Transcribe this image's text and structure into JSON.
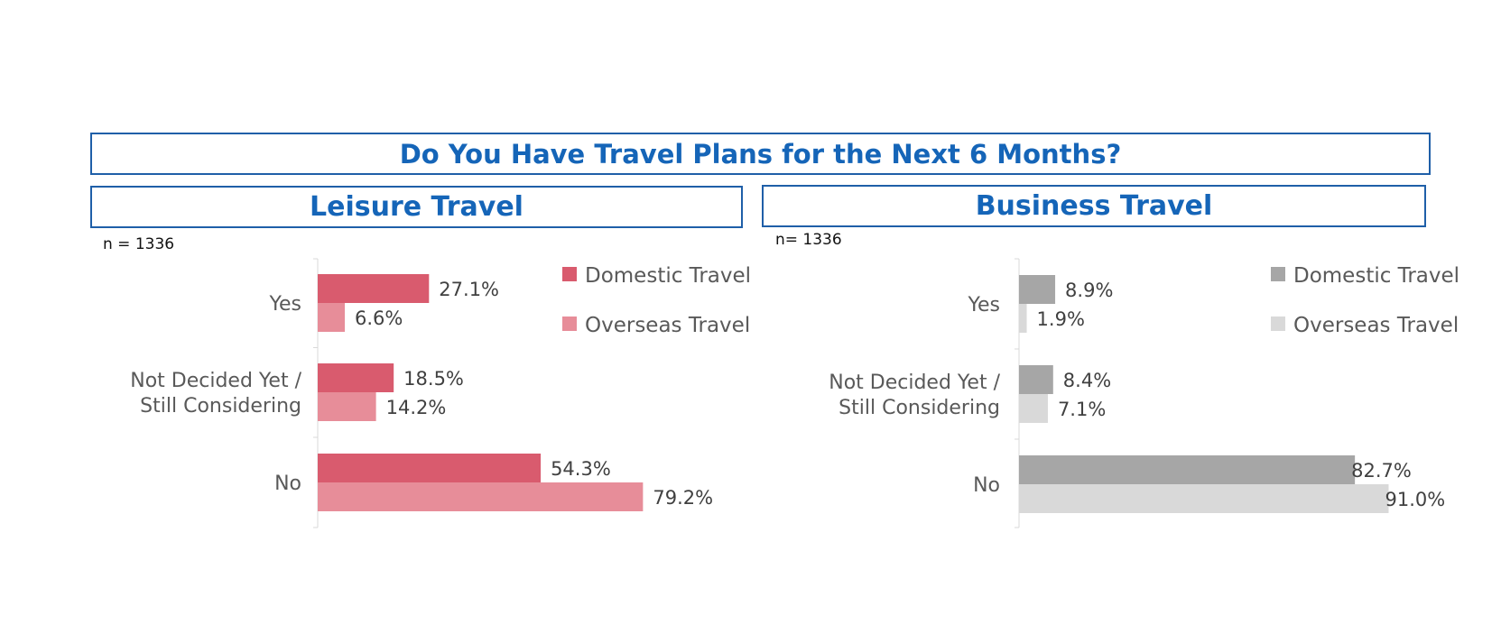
{
  "title": "Do You Have Travel Plans for the Next 6 Months?",
  "colors": {
    "border": "#1f5fa8",
    "title_text": "#1565b8",
    "leisure_domestic": "#d95b6e",
    "leisure_overseas": "#e78d99",
    "business_domestic": "#a6a6a6",
    "business_overseas": "#d9d9d9"
  },
  "chart_data": [
    {
      "type": "bar",
      "orientation": "horizontal",
      "title": "Leisure Travel",
      "sample": "n = 1336",
      "categories": [
        [
          "Yes"
        ],
        [
          "Not Decided Yet /",
          "Still Considering"
        ],
        [
          "No"
        ]
      ],
      "series": [
        {
          "name": "Domestic Travel",
          "values": [
            27.1,
            18.5,
            54.3
          ],
          "labels": [
            "27.1%",
            "18.5%",
            "54.3%"
          ],
          "color": "#d95b6e"
        },
        {
          "name": "Overseas Travel",
          "values": [
            6.6,
            14.2,
            79.2
          ],
          "labels": [
            "6.6%",
            "14.2%",
            "79.2%"
          ],
          "color": "#e78d99"
        }
      ],
      "xlim": [
        0,
        100
      ],
      "legend": "top-right",
      "grid": false
    },
    {
      "type": "bar",
      "orientation": "horizontal",
      "title": "Business Travel",
      "sample": "n= 1336",
      "categories": [
        [
          "Yes"
        ],
        [
          "Not Decided Yet /",
          "Still Considering"
        ],
        [
          "No"
        ]
      ],
      "series": [
        {
          "name": "Domestic Travel",
          "values": [
            8.9,
            8.4,
            82.7
          ],
          "labels": [
            "8.9%",
            "8.4%",
            "82.7%"
          ],
          "color": "#a6a6a6"
        },
        {
          "name": "Overseas Travel",
          "values": [
            1.9,
            7.1,
            91.0
          ],
          "labels": [
            "1.9%",
            "7.1%",
            "91.0%"
          ],
          "color": "#d9d9d9"
        }
      ],
      "xlim": [
        0,
        100
      ],
      "legend": "top-right",
      "grid": false
    }
  ]
}
